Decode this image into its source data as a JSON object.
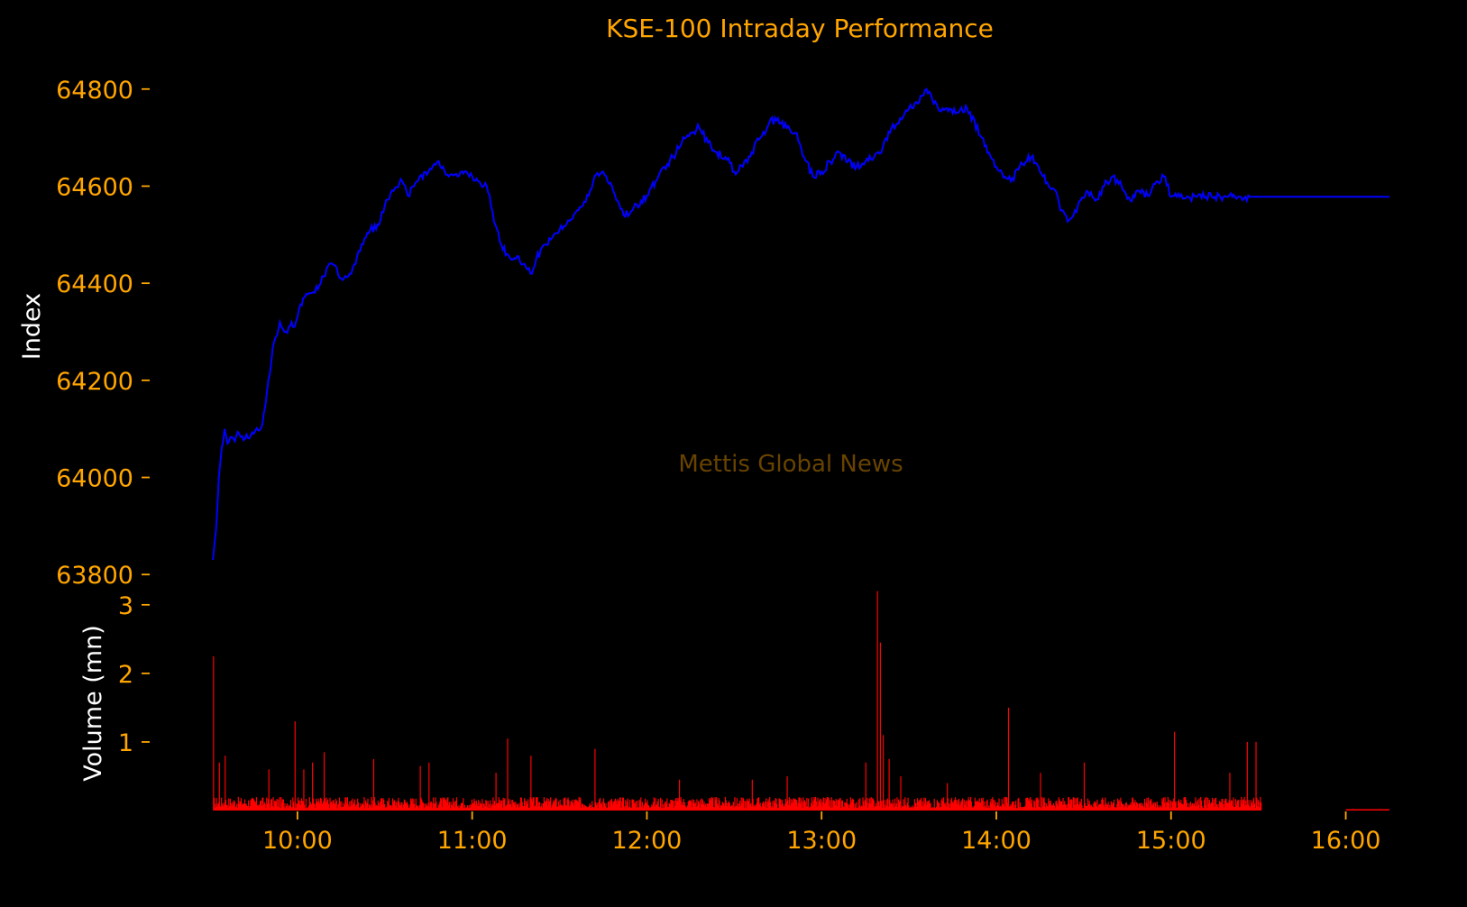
{
  "chart_data": {
    "type": "line",
    "title": "KSE-100 Intraday Performance",
    "watermark": "Mettis Global News",
    "price_panel": {
      "ylabel": "Index",
      "ylim": [
        63780,
        64820
      ],
      "yticks": [
        63800,
        64000,
        64200,
        64400,
        64600,
        64800
      ],
      "ytick_labels": [
        "63800",
        "64000",
        "64200",
        "64400",
        "64600",
        "64800"
      ],
      "line_color": "#0000FF",
      "series": [
        {
          "x": [
            "09:31",
            "09:32",
            "09:33",
            "09:34",
            "09:35",
            "09:36",
            "09:38",
            "09:40",
            "09:42",
            "09:45",
            "09:48",
            "09:50",
            "09:52",
            "09:54",
            "09:56",
            "09:57",
            "09:58",
            "09:59",
            "10:00",
            "10:02",
            "10:05",
            "10:08",
            "10:10",
            "10:12",
            "10:15",
            "10:18",
            "10:20",
            "10:22",
            "10:25",
            "10:28",
            "10:30",
            "10:33",
            "10:36",
            "10:38",
            "10:40",
            "10:42",
            "10:45",
            "10:48",
            "10:50",
            "10:52",
            "10:55",
            "10:58",
            "11:00",
            "11:02",
            "11:05",
            "11:08",
            "11:10",
            "11:12",
            "11:15",
            "11:18",
            "11:20",
            "11:22",
            "11:25",
            "11:28",
            "11:30",
            "11:33",
            "11:36",
            "11:38",
            "11:40",
            "11:42",
            "11:45",
            "11:48",
            "11:50",
            "11:52",
            "11:55",
            "11:58",
            "12:00",
            "12:03",
            "12:06",
            "12:09",
            "12:12",
            "12:15",
            "12:18",
            "12:21",
            "12:24",
            "12:27",
            "12:30",
            "12:33",
            "12:36",
            "12:39",
            "12:42",
            "12:45",
            "12:48",
            "12:51",
            "12:54",
            "12:57",
            "13:00",
            "13:03",
            "13:06",
            "13:09",
            "13:12",
            "13:15",
            "13:18",
            "13:21",
            "13:24",
            "13:27",
            "13:30",
            "13:33",
            "13:36",
            "13:40",
            "13:45",
            "13:50",
            "13:55",
            "14:00",
            "14:05",
            "14:08",
            "14:12",
            "14:15",
            "14:18",
            "14:21",
            "14:22",
            "14:25",
            "14:28",
            "14:31",
            "14:34",
            "14:37",
            "14:40",
            "14:43",
            "14:46",
            "14:49",
            "14:52",
            "14:55",
            "14:58",
            "15:00",
            "15:03",
            "15:06",
            "15:09",
            "15:12",
            "15:15",
            "15:18",
            "15:21",
            "15:24",
            "15:27",
            "15:30",
            "15:30",
            "15:40",
            "15:50",
            "16:00",
            "16:10",
            "16:15"
          ],
          "values": [
            63830,
            63890,
            64000,
            64060,
            64100,
            64070,
            64080,
            64090,
            64080,
            64090,
            64110,
            64200,
            64280,
            64320,
            64300,
            64310,
            64320,
            64310,
            64330,
            64370,
            64380,
            64400,
            64430,
            64440,
            64410,
            64420,
            64440,
            64480,
            64510,
            64520,
            64560,
            64590,
            64610,
            64580,
            64600,
            64620,
            64630,
            64650,
            64640,
            64620,
            64620,
            64630,
            64620,
            64610,
            64600,
            64520,
            64480,
            64460,
            64450,
            64440,
            64420,
            64450,
            64480,
            64500,
            64510,
            64530,
            64550,
            64560,
            64580,
            64620,
            64630,
            64600,
            64570,
            64540,
            64550,
            64570,
            64580,
            64610,
            64640,
            64660,
            64690,
            64710,
            64720,
            64690,
            64670,
            64660,
            64630,
            64640,
            64670,
            64700,
            64730,
            64740,
            64720,
            64710,
            64660,
            64620,
            64630,
            64650,
            64670,
            64650,
            64640,
            64650,
            64660,
            64680,
            64720,
            64740,
            64760,
            64770,
            64800,
            64760,
            64750,
            64760,
            64700,
            64640,
            64610,
            64640,
            64660,
            64630,
            64600,
            64580,
            64550,
            64530,
            64560,
            64590,
            64570,
            64600,
            64620,
            64600,
            64570,
            64590,
            64580,
            64610,
            64620,
            64578,
            64578,
            64578,
            64578,
            64578,
            64578,
            64578,
            64578,
            64578,
            64578,
            64578,
            64578,
            64578,
            64578,
            64578,
            64578,
            64578
          ]
        }
      ]
    },
    "volume_panel": {
      "ylabel": "Volume (mn)",
      "ylim": [
        0,
        3.3
      ],
      "yticks": [
        1,
        2,
        3
      ],
      "ytick_labels": [
        "1",
        "2",
        "3"
      ],
      "bar_color": "#FF0000",
      "spikes": [
        {
          "x": "09:31",
          "v": 2.25
        },
        {
          "x": "09:33",
          "v": 0.7
        },
        {
          "x": "09:35",
          "v": 0.8
        },
        {
          "x": "09:50",
          "v": 0.6
        },
        {
          "x": "09:59",
          "v": 1.3
        },
        {
          "x": "10:02",
          "v": 0.6
        },
        {
          "x": "10:05",
          "v": 0.7
        },
        {
          "x": "10:09",
          "v": 0.85
        },
        {
          "x": "10:26",
          "v": 0.75
        },
        {
          "x": "10:42",
          "v": 0.65
        },
        {
          "x": "10:45",
          "v": 0.7
        },
        {
          "x": "11:08",
          "v": 0.55
        },
        {
          "x": "11:12",
          "v": 1.05
        },
        {
          "x": "11:20",
          "v": 0.8
        },
        {
          "x": "11:42",
          "v": 0.9
        },
        {
          "x": "12:11",
          "v": 0.45
        },
        {
          "x": "12:36",
          "v": 0.45
        },
        {
          "x": "12:48",
          "v": 0.5
        },
        {
          "x": "13:15",
          "v": 0.7
        },
        {
          "x": "13:19",
          "v": 3.2
        },
        {
          "x": "13:20",
          "v": 2.45
        },
        {
          "x": "13:21",
          "v": 1.1
        },
        {
          "x": "13:23",
          "v": 0.75
        },
        {
          "x": "13:27",
          "v": 0.5
        },
        {
          "x": "13:43",
          "v": 0.4
        },
        {
          "x": "14:04",
          "v": 1.5
        },
        {
          "x": "14:15",
          "v": 0.55
        },
        {
          "x": "14:30",
          "v": 0.7
        },
        {
          "x": "15:01",
          "v": 1.15
        },
        {
          "x": "15:20",
          "v": 0.55
        },
        {
          "x": "15:26",
          "v": 1.0
        },
        {
          "x": "15:29",
          "v": 1.0
        }
      ],
      "close_auction": {
        "from": "16:00",
        "to": "16:15",
        "v": 0.02
      }
    },
    "x_axis": {
      "range": [
        "09:30",
        "16:15"
      ],
      "ticks": [
        "10:00",
        "11:00",
        "12:00",
        "13:00",
        "14:00",
        "15:00",
        "16:00"
      ],
      "tick_labels": [
        "10:00",
        "11:00",
        "12:00",
        "13:00",
        "14:00",
        "15:00",
        "16:00"
      ]
    },
    "grid": false,
    "background": "#000000",
    "tick_color": "#FFA500",
    "label_color": "#FFFFFF"
  }
}
